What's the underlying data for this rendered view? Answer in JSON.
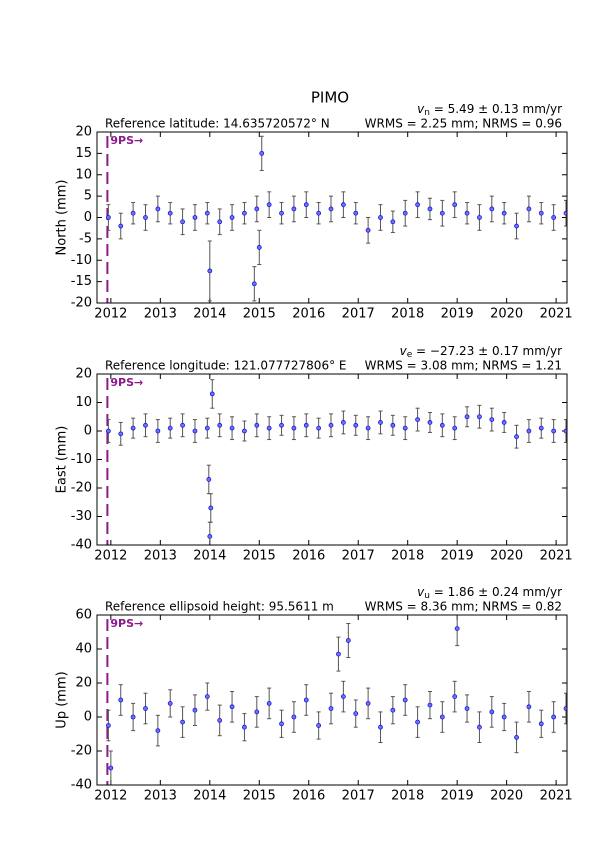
{
  "title": "PIMO",
  "chart_data": [
    {
      "type": "scatter",
      "y_label": "North (mm)",
      "reference": "Reference latitude: 14.635720572° N",
      "velocity": {
        "symbol": "v",
        "subscript": "n",
        "text": " = 5.49 ± 0.13 mm/yr"
      },
      "stats": "WRMS = 2.25 mm; NRMS = 0.96",
      "event": {
        "x": 2011.93,
        "label": "9PS→",
        "color": "#8b1a8b"
      },
      "xlim": [
        2011.72,
        2021.22
      ],
      "xticks": [
        2012,
        2013,
        2014,
        2015,
        2016,
        2017,
        2018,
        2019,
        2020,
        2021
      ],
      "ylim": [
        -20,
        20
      ],
      "yticks": [
        -20,
        -15,
        -10,
        -5,
        0,
        5,
        10,
        15,
        20
      ],
      "point_color": "#1a1ad0",
      "error_color": "#555555",
      "x": [
        2011.95,
        2012.2,
        2012.45,
        2012.7,
        2012.95,
        2013.2,
        2013.45,
        2013.7,
        2013.95,
        2014.2,
        2014.45,
        2014.7,
        2014.95,
        2015.2,
        2015.45,
        2015.7,
        2015.95,
        2016.2,
        2016.45,
        2016.7,
        2016.95,
        2017.2,
        2017.45,
        2017.7,
        2017.95,
        2018.2,
        2018.45,
        2018.7,
        2018.95,
        2019.2,
        2019.45,
        2019.7,
        2019.95,
        2020.2,
        2020.45,
        2020.7,
        2020.95,
        2021.2,
        2014.0,
        2014.9,
        2015.05,
        2015.0
      ],
      "values": [
        0,
        -2,
        1,
        0,
        2,
        1,
        -1,
        0,
        1,
        -1,
        0,
        1,
        2,
        3,
        1,
        2,
        3,
        1,
        2,
        3,
        1,
        -3,
        0,
        -1,
        1,
        3,
        2,
        1,
        3,
        1,
        0,
        2,
        1,
        -2,
        2,
        1,
        0,
        1,
        -12.5,
        -15.5,
        15,
        -7
      ],
      "errors": [
        3,
        3,
        2.5,
        3,
        3,
        2.5,
        3,
        3,
        2.5,
        3,
        3,
        2.5,
        3,
        3,
        2.5,
        3,
        3,
        2.5,
        3,
        3,
        2.5,
        3,
        3,
        2.5,
        3,
        3,
        2.5,
        3,
        3,
        2.5,
        3,
        3,
        2.5,
        3,
        3,
        2.5,
        3,
        3,
        7,
        4,
        4,
        4
      ]
    },
    {
      "type": "scatter",
      "y_label": "East (mm)",
      "reference": "Reference longitude: 121.077727806° E",
      "velocity": {
        "symbol": "v",
        "subscript": "e",
        "text": " = −27.23 ± 0.17 mm/yr"
      },
      "stats": "WRMS = 3.08 mm; NRMS = 1.21",
      "event": {
        "x": 2011.93,
        "label": "9PS→",
        "color": "#8b1a8b"
      },
      "xlim": [
        2011.72,
        2021.22
      ],
      "xticks": [
        2012,
        2013,
        2014,
        2015,
        2016,
        2017,
        2018,
        2019,
        2020,
        2021
      ],
      "ylim": [
        -40,
        20
      ],
      "yticks": [
        -40,
        -30,
        -20,
        -10,
        0,
        10,
        20
      ],
      "point_color": "#1a1ad0",
      "error_color": "#555555",
      "x": [
        2011.95,
        2012.2,
        2012.45,
        2012.7,
        2012.95,
        2013.2,
        2013.45,
        2013.7,
        2013.95,
        2014.2,
        2014.45,
        2014.7,
        2014.95,
        2015.2,
        2015.45,
        2015.7,
        2015.95,
        2016.2,
        2016.45,
        2016.7,
        2016.95,
        2017.2,
        2017.45,
        2017.7,
        2017.95,
        2018.2,
        2018.45,
        2018.7,
        2018.95,
        2019.2,
        2019.45,
        2019.7,
        2019.95,
        2020.2,
        2020.45,
        2020.7,
        2020.95,
        2021.2,
        2014.0,
        2014.02,
        2013.98,
        2014.05
      ],
      "values": [
        0,
        -1,
        1,
        2,
        0,
        1,
        2,
        0,
        1,
        2,
        1,
        0,
        2,
        1,
        2,
        1,
        2,
        1,
        2,
        3,
        2,
        1,
        3,
        2,
        1,
        4,
        3,
        2,
        1,
        5,
        5,
        4,
        3,
        -2,
        0,
        1,
        0,
        0,
        -37,
        -27,
        -17,
        13
      ],
      "errors": [
        4,
        4,
        3.5,
        4,
        4,
        3.5,
        4,
        4,
        3.5,
        4,
        4,
        3.5,
        4,
        4,
        3.5,
        4,
        4,
        3.5,
        4,
        4,
        3.5,
        4,
        4,
        3.5,
        4,
        4,
        3.5,
        4,
        4,
        3.5,
        4,
        4,
        3.5,
        4,
        4,
        3.5,
        4,
        4,
        5,
        5,
        5,
        5
      ]
    },
    {
      "type": "scatter",
      "y_label": "Up (mm)",
      "reference": "Reference ellipsoid height: 95.5611 m",
      "velocity": {
        "symbol": "v",
        "subscript": "u",
        "text": " = 1.86 ± 0.24 mm/yr"
      },
      "stats": "WRMS = 8.36 mm; NRMS = 0.82",
      "event": {
        "x": 2011.93,
        "label": "9PS→",
        "color": "#8b1a8b"
      },
      "xlim": [
        2011.72,
        2021.22
      ],
      "xticks": [
        2012,
        2013,
        2014,
        2015,
        2016,
        2017,
        2018,
        2019,
        2020,
        2021
      ],
      "ylim": [
        -40,
        60
      ],
      "yticks": [
        -40,
        -20,
        0,
        20,
        40,
        60
      ],
      "point_color": "#1a1ad0",
      "error_color": "#555555",
      "x": [
        2011.95,
        2012.2,
        2012.45,
        2012.7,
        2012.95,
        2013.2,
        2013.45,
        2013.7,
        2013.95,
        2014.2,
        2014.45,
        2014.7,
        2014.95,
        2015.2,
        2015.45,
        2015.7,
        2015.95,
        2016.2,
        2016.45,
        2016.7,
        2016.95,
        2017.2,
        2017.45,
        2017.7,
        2017.95,
        2018.2,
        2018.45,
        2018.7,
        2018.95,
        2019.2,
        2019.45,
        2019.7,
        2019.95,
        2020.2,
        2020.45,
        2020.7,
        2020.95,
        2021.2,
        2019.0,
        2016.8,
        2012.0,
        2016.6
      ],
      "values": [
        -5,
        10,
        0,
        5,
        -8,
        8,
        -3,
        4,
        12,
        -2,
        6,
        -6,
        3,
        8,
        -4,
        0,
        10,
        -5,
        5,
        12,
        2,
        8,
        -6,
        4,
        10,
        -3,
        7,
        0,
        12,
        5,
        -6,
        3,
        0,
        -12,
        6,
        -4,
        0,
        5,
        52,
        45,
        -30,
        37
      ],
      "errors": [
        9,
        9,
        8,
        9,
        9,
        8,
        9,
        9,
        8,
        9,
        9,
        8,
        9,
        9,
        8,
        9,
        9,
        8,
        9,
        9,
        8,
        9,
        9,
        8,
        9,
        9,
        8,
        9,
        9,
        8,
        9,
        9,
        8,
        9,
        9,
        8,
        9,
        9,
        10,
        10,
        10,
        10
      ]
    }
  ]
}
